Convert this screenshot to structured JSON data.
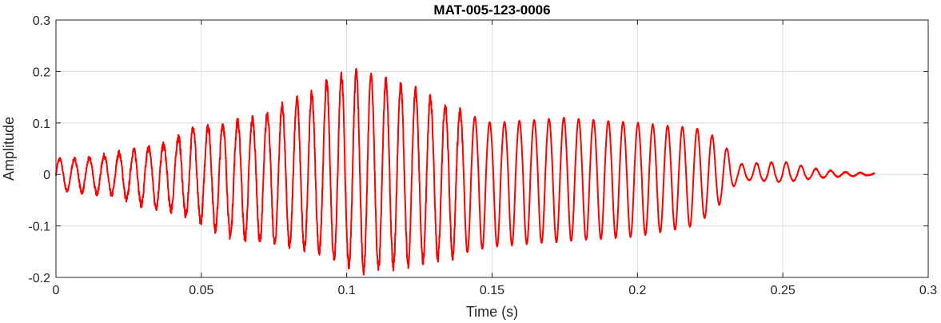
{
  "chart_data": {
    "type": "line",
    "title": "MAT-005-123-0006",
    "xlabel": "Time (s)",
    "ylabel": "Amplitude",
    "xlim": [
      0,
      0.3
    ],
    "ylim": [
      -0.2,
      0.3
    ],
    "grid": true,
    "legend": "none",
    "x_ticks": [
      {
        "value": 0,
        "label": "0"
      },
      {
        "value": 0.05,
        "label": "0.05"
      },
      {
        "value": 0.1,
        "label": "0.1"
      },
      {
        "value": 0.15,
        "label": "0.15"
      },
      {
        "value": 0.2,
        "label": "0.2"
      },
      {
        "value": 0.25,
        "label": "0.25"
      },
      {
        "value": 0.3,
        "label": "0.3"
      }
    ],
    "y_ticks": [
      {
        "value": -0.2,
        "label": "-0.2"
      },
      {
        "value": -0.1,
        "label": "-0.1"
      },
      {
        "value": 0,
        "label": "0"
      },
      {
        "value": 0.1,
        "label": "0.1"
      },
      {
        "value": 0.2,
        "label": "0.2"
      },
      {
        "value": 0.3,
        "label": "0.3"
      }
    ],
    "series": [
      {
        "color": "#ff0000",
        "line_width": 2,
        "signal": {
          "duration_s": 0.2815,
          "cycle_period_s": 0.0051,
          "envelope": [
            {
              "x": 0.0,
              "pos": 0.03,
              "neg": -0.03
            },
            {
              "x": 0.01,
              "pos": 0.03,
              "neg": -0.035
            },
            {
              "x": 0.02,
              "pos": 0.04,
              "neg": -0.04
            },
            {
              "x": 0.03,
              "pos": 0.05,
              "neg": -0.06
            },
            {
              "x": 0.04,
              "pos": 0.06,
              "neg": -0.07
            },
            {
              "x": 0.045,
              "pos": 0.09,
              "neg": -0.08
            },
            {
              "x": 0.06,
              "pos": 0.1,
              "neg": -0.12
            },
            {
              "x": 0.07,
              "pos": 0.11,
              "neg": -0.13
            },
            {
              "x": 0.08,
              "pos": 0.14,
              "neg": -0.14
            },
            {
              "x": 0.09,
              "pos": 0.16,
              "neg": -0.15
            },
            {
              "x": 0.095,
              "pos": 0.19,
              "neg": -0.16
            },
            {
              "x": 0.105,
              "pos": 0.2,
              "neg": -0.19
            },
            {
              "x": 0.115,
              "pos": 0.18,
              "neg": -0.18
            },
            {
              "x": 0.125,
              "pos": 0.16,
              "neg": -0.17
            },
            {
              "x": 0.135,
              "pos": 0.13,
              "neg": -0.16
            },
            {
              "x": 0.15,
              "pos": 0.1,
              "neg": -0.14
            },
            {
              "x": 0.175,
              "pos": 0.11,
              "neg": -0.13
            },
            {
              "x": 0.2,
              "pos": 0.1,
              "neg": -0.12
            },
            {
              "x": 0.22,
              "pos": 0.09,
              "neg": -0.1
            },
            {
              "x": 0.228,
              "pos": 0.07,
              "neg": -0.06
            },
            {
              "x": 0.235,
              "pos": 0.02,
              "neg": -0.01
            },
            {
              "x": 0.25,
              "pos": 0.025,
              "neg": -0.015
            },
            {
              "x": 0.26,
              "pos": 0.012,
              "neg": -0.008
            },
            {
              "x": 0.27,
              "pos": 0.005,
              "neg": -0.004
            },
            {
              "x": 0.2815,
              "pos": 0.002,
              "neg": -0.001
            }
          ]
        }
      }
    ]
  }
}
